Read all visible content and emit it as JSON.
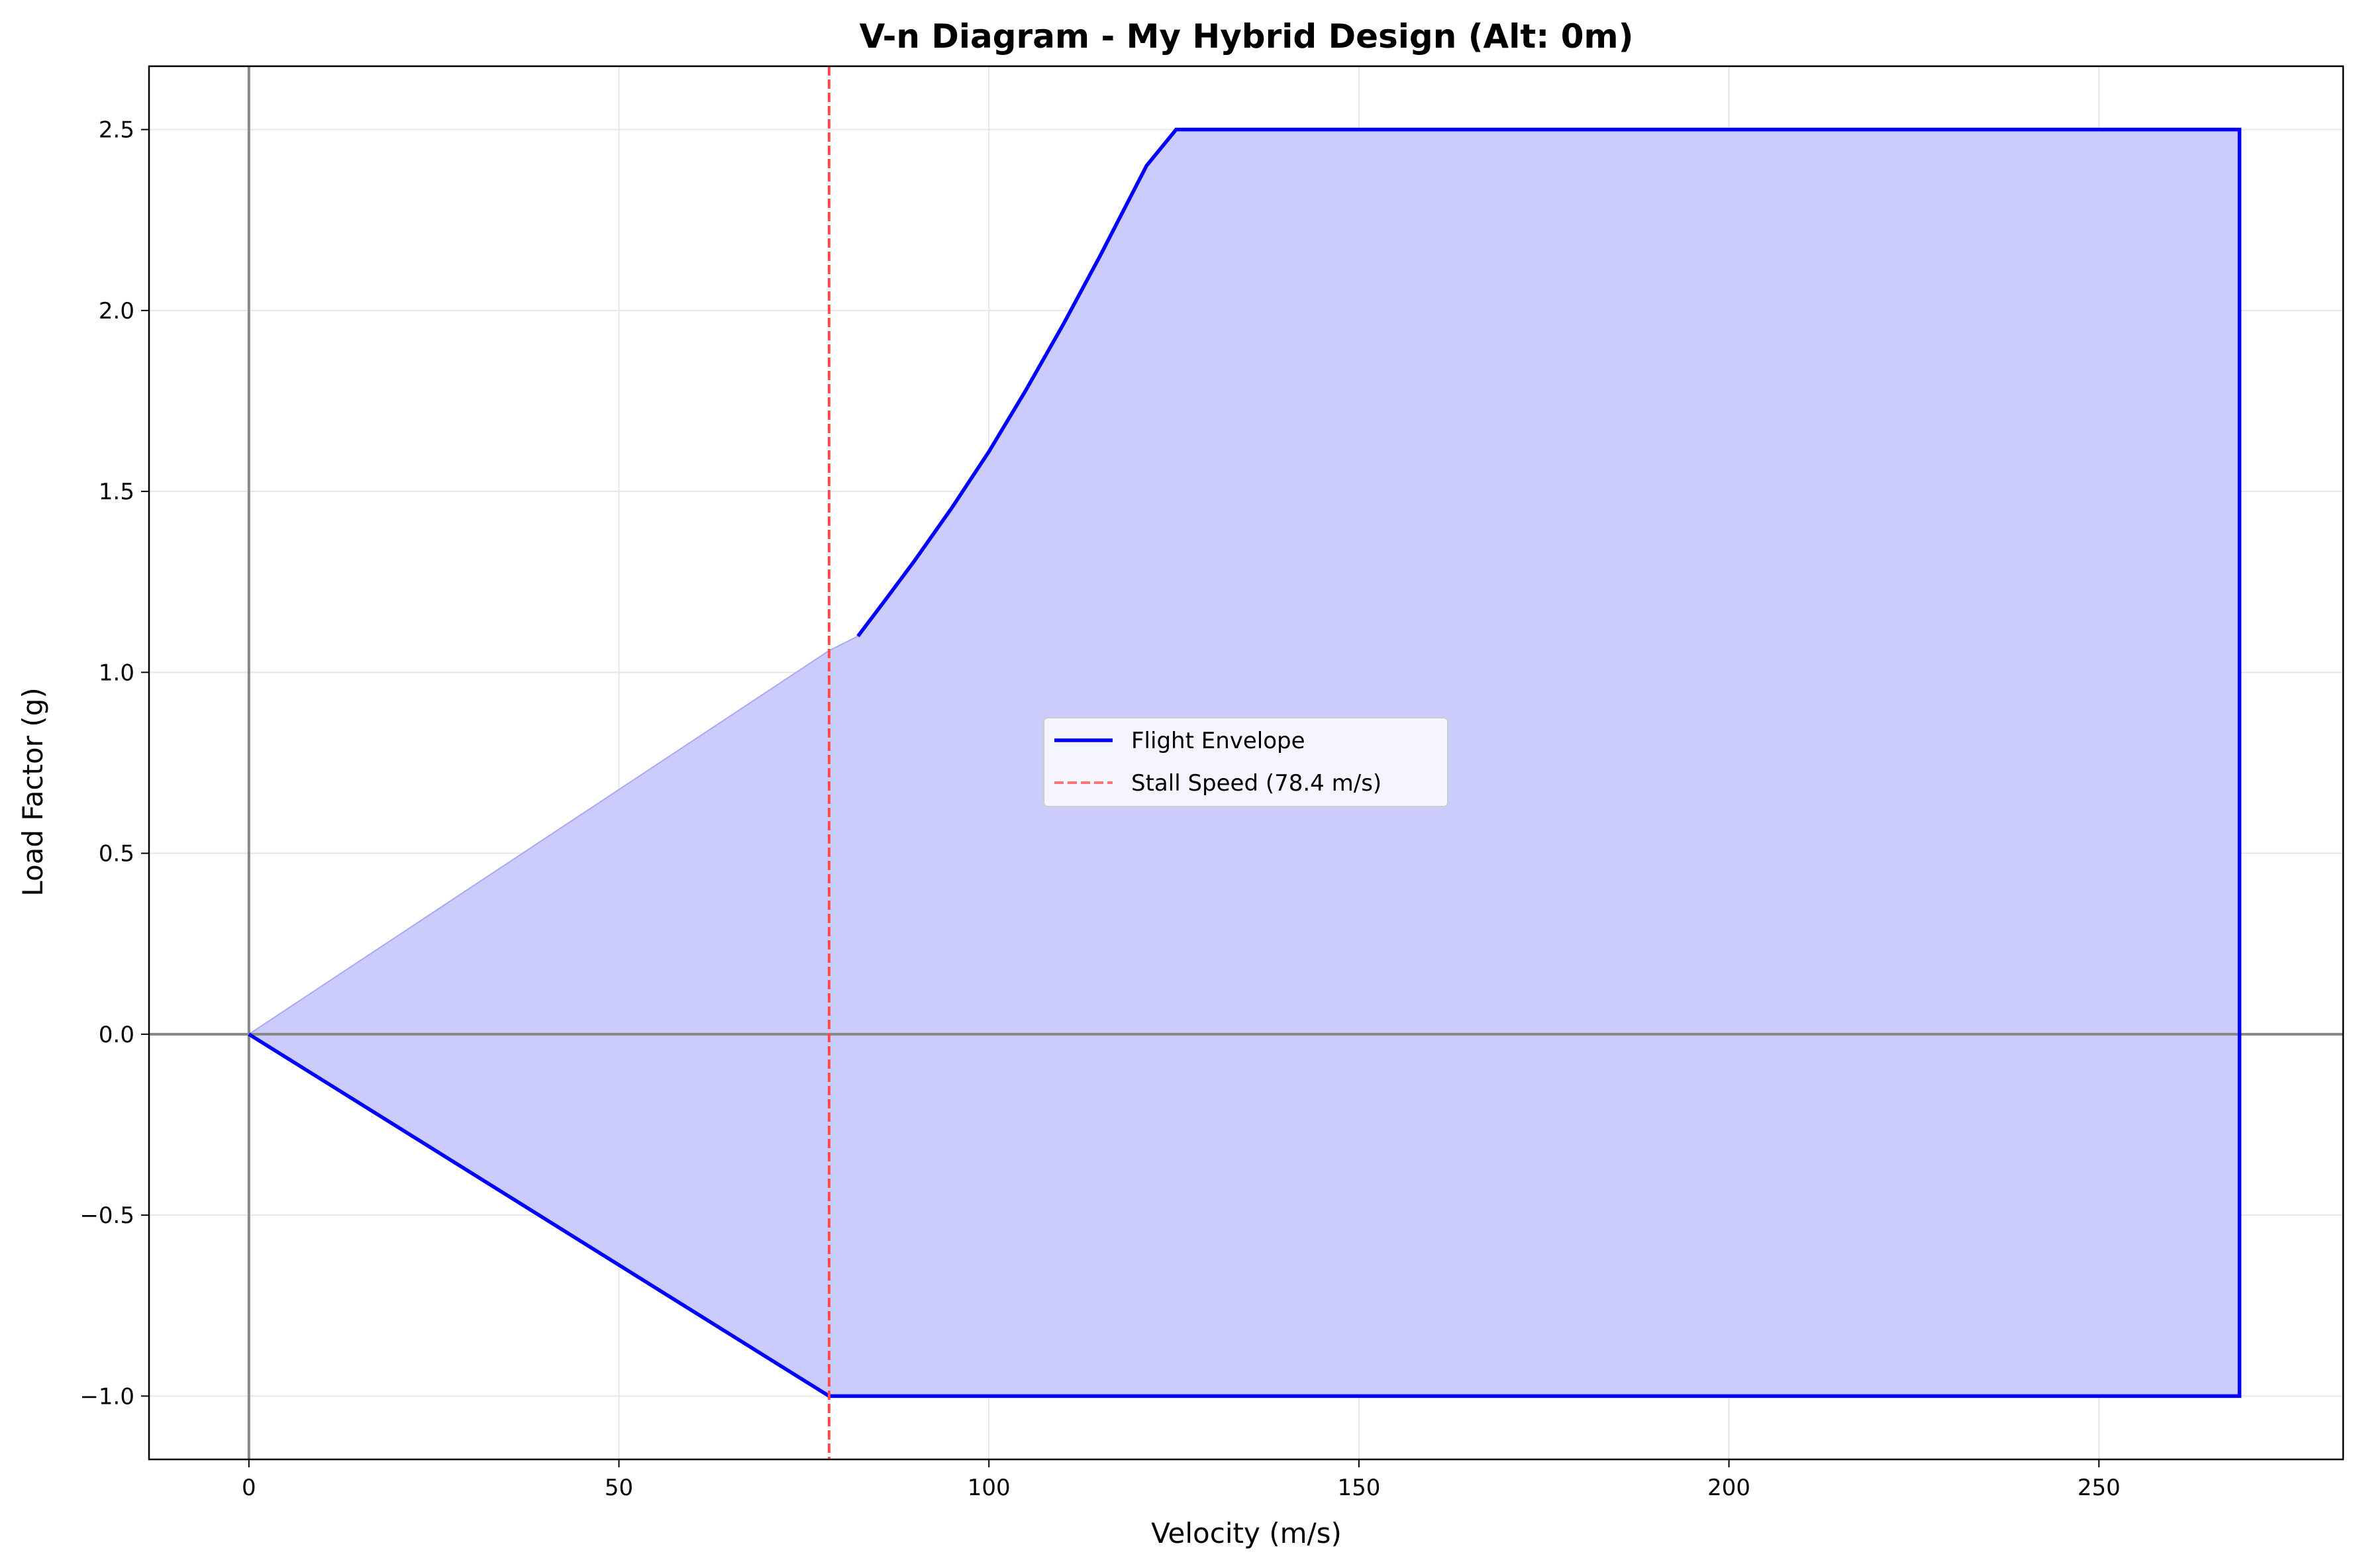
{
  "chart_data": {
    "type": "line",
    "title": "V-n Diagram - My Hybrid Design (Alt: 0m)",
    "xlabel": "Velocity (m/s)",
    "ylabel": "Load Factor (g)",
    "xlim": [
      -13.5,
      283.0
    ],
    "ylim": [
      -1.175,
      2.675
    ],
    "x_ticks": [
      0,
      50,
      100,
      150,
      200,
      250
    ],
    "x_tick_labels": [
      "0",
      "50",
      "100",
      "150",
      "200",
      "250"
    ],
    "y_ticks": [
      -1.0,
      -0.5,
      0.0,
      0.5,
      1.0,
      1.5,
      2.0,
      2.5
    ],
    "y_tick_labels": [
      "−1.0",
      "−0.5",
      "0.0",
      "0.5",
      "1.0",
      "1.5",
      "2.0",
      "2.5"
    ],
    "grid": true,
    "legend_position": "center",
    "colors": {
      "envelope": "#0000ff",
      "fill": "#ccccfc",
      "stall": "#ff4a4a",
      "zero_lines": "#888888",
      "grid": "#e6e6e6"
    },
    "series": [
      {
        "name": "Flight Envelope",
        "style": "solid",
        "segments": [
          [
            [
              82.3,
              1.1
            ],
            [
              86.0,
              1.2
            ],
            [
              90.0,
              1.31
            ],
            [
              95.0,
              1.455
            ],
            [
              100.0,
              1.61
            ],
            [
              105.0,
              1.78
            ],
            [
              110.0,
              1.96
            ],
            [
              115.0,
              2.15
            ],
            [
              121.3,
              2.4
            ],
            [
              125.3,
              2.5
            ],
            [
              269.0,
              2.5
            ],
            [
              269.0,
              -1.0
            ],
            [
              78.4,
              -1.0
            ],
            [
              0.0,
              0.0
            ]
          ]
        ]
      },
      {
        "name": "Stall Speed (78.4 m/s)",
        "style": "dashed",
        "x": 78.4
      }
    ],
    "fill_region": [
      [
        0.0,
        0.0
      ],
      [
        78.4,
        1.06
      ],
      [
        82.3,
        1.1
      ],
      [
        86.0,
        1.2
      ],
      [
        90.0,
        1.31
      ],
      [
        95.0,
        1.455
      ],
      [
        100.0,
        1.61
      ],
      [
        105.0,
        1.78
      ],
      [
        110.0,
        1.96
      ],
      [
        115.0,
        2.15
      ],
      [
        121.3,
        2.4
      ],
      [
        125.3,
        2.5
      ],
      [
        269.0,
        2.5
      ],
      [
        269.0,
        -1.0
      ],
      [
        78.4,
        -1.0
      ]
    ]
  }
}
